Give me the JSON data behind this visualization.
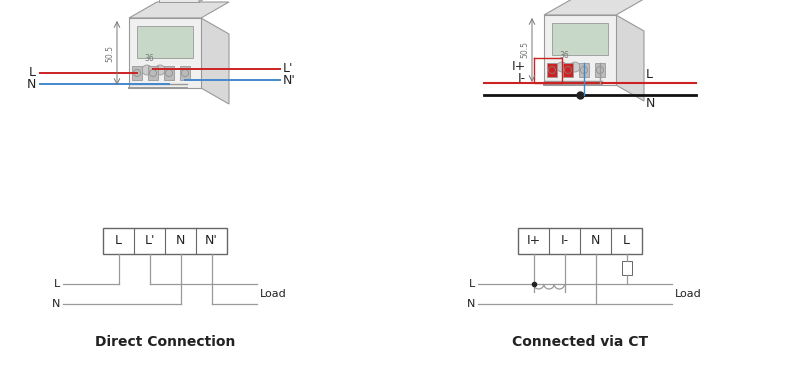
{
  "bg_color": "#ffffff",
  "title_left": "Direct Connection",
  "title_right": "Connected via CT",
  "title_fontsize": 10,
  "terminal_labels_left": [
    "L",
    "L'",
    "N",
    "N'"
  ],
  "terminal_labels_right": [
    "I+",
    "I-",
    "N",
    "L"
  ],
  "line_color": "#999999",
  "red_color": "#cc2222",
  "blue_color": "#4488cc",
  "black_color": "#222222",
  "dark_color": "#333333",
  "dim_color": "#777777",
  "body_color": "#dddddd",
  "body_edge": "#999999"
}
